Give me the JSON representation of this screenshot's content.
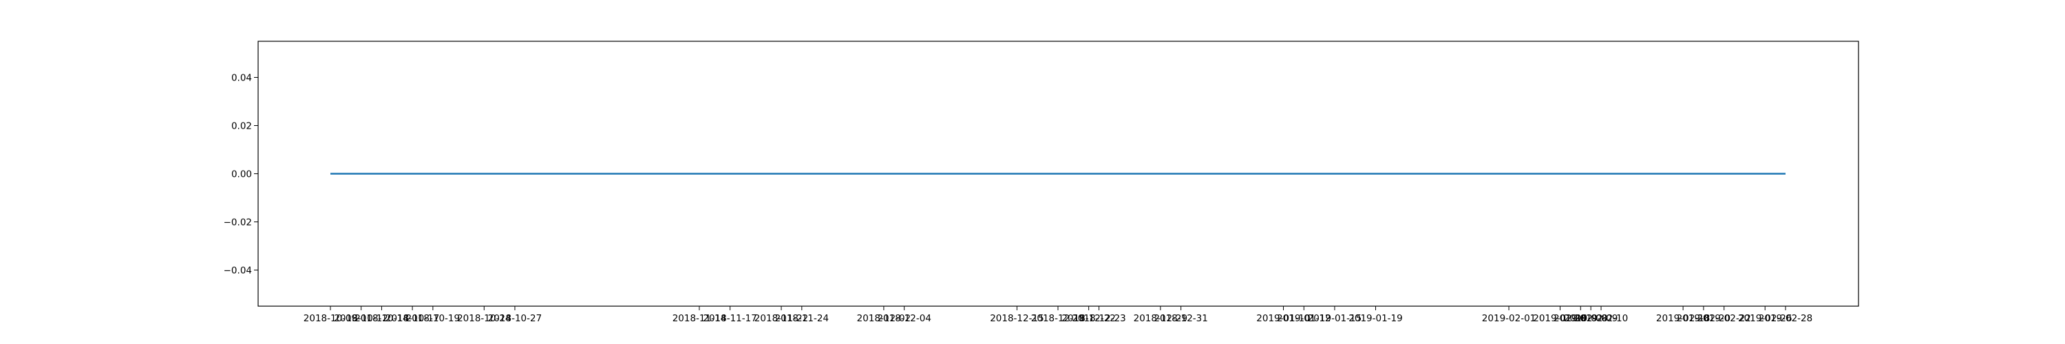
{
  "chart_data": {
    "type": "line",
    "title": "",
    "xlabel": "",
    "ylabel": "",
    "x_tick_labels": [
      "2018-10-09",
      "2018-10-12",
      "2018-10-14",
      "2018-10-17",
      "2018-10-19",
      "2018-10-24",
      "2018-10-27",
      "2018-11-14",
      "2018-11-17",
      "2018-11-22",
      "2018-11-24",
      "2018-12-02",
      "2018-12-04",
      "2018-12-15",
      "2018-12-19",
      "2018-12-22",
      "2018-12-23",
      "2018-12-29",
      "2018-12-31",
      "2019-01-10",
      "2019-01-12",
      "2019-01-15",
      "2019-01-19",
      "2019-02-01",
      "2019-02-06",
      "2019-02-08",
      "2019-02-09",
      "2019-02-10",
      "2019-02-18",
      "2019-02-20",
      "2019-02-22",
      "2019-02-26",
      "2019-02-28"
    ],
    "y_tick_labels": [
      "0.04",
      "0.02",
      "0.00",
      "−0.02",
      "−0.04"
    ],
    "y_ticks": [
      0.04,
      0.02,
      0.0,
      -0.02,
      -0.04
    ],
    "ylim": [
      -0.055,
      0.055
    ],
    "grid": false,
    "series": [
      {
        "color": "#1f77b4",
        "x": [
          "2018-10-09",
          "2018-10-12",
          "2018-10-14",
          "2018-10-17",
          "2018-10-19",
          "2018-10-24",
          "2018-10-27",
          "2018-11-14",
          "2018-11-17",
          "2018-11-22",
          "2018-11-24",
          "2018-12-02",
          "2018-12-04",
          "2018-12-15",
          "2018-12-19",
          "2018-12-22",
          "2018-12-23",
          "2018-12-29",
          "2018-12-31",
          "2019-01-10",
          "2019-01-12",
          "2019-01-15",
          "2019-01-19",
          "2019-02-01",
          "2019-02-06",
          "2019-02-08",
          "2019-02-09",
          "2019-02-10",
          "2019-02-18",
          "2019-02-20",
          "2019-02-22",
          "2019-02-26",
          "2019-02-28"
        ],
        "values": [
          0,
          0,
          0,
          0,
          0,
          0,
          0,
          0,
          0,
          0,
          0,
          0,
          0,
          0,
          0,
          0,
          0,
          0,
          0,
          0,
          0,
          0,
          0,
          0,
          0,
          0,
          0,
          0,
          0,
          0,
          0,
          0,
          0
        ]
      }
    ]
  }
}
